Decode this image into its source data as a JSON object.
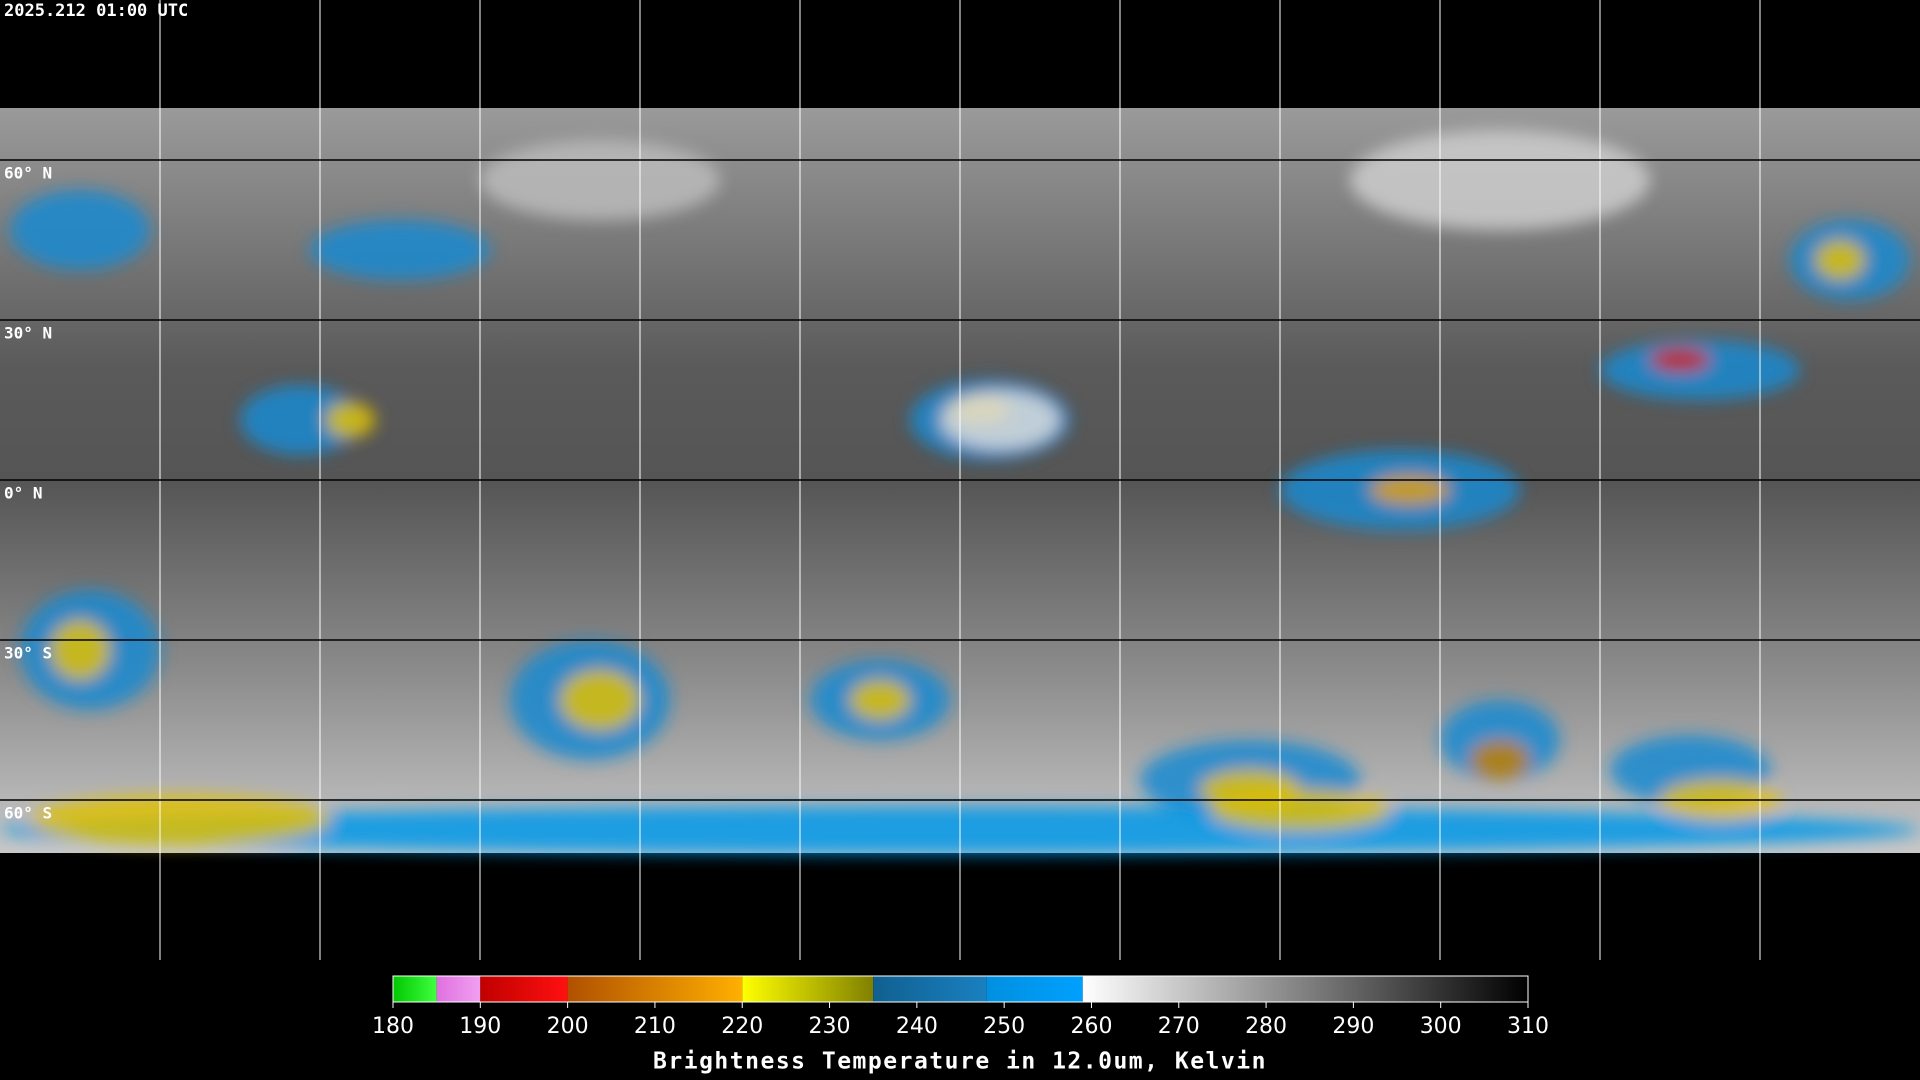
{
  "timestamp": "2025.212 01:00 UTC",
  "latitudes": [
    {
      "value": 60,
      "label": "60° N"
    },
    {
      "value": 30,
      "label": "30° N"
    },
    {
      "value": 0,
      "label": "0° N"
    },
    {
      "value": -30,
      "label": "30° S"
    },
    {
      "value": -60,
      "label": "60° S"
    }
  ],
  "colorbar": {
    "title": "Brightness Temperature in 12.0um, Kelvin",
    "range": [
      180,
      310
    ],
    "ticks": [
      180,
      190,
      200,
      210,
      220,
      230,
      240,
      250,
      260,
      270,
      280,
      290,
      300,
      310
    ],
    "segments": [
      {
        "from": 180,
        "to": 185,
        "colors": [
          "#00c800",
          "#40ff40"
        ]
      },
      {
        "from": 185,
        "to": 190,
        "colors": [
          "#e070e0",
          "#f0a0f0"
        ]
      },
      {
        "from": 190,
        "to": 200,
        "colors": [
          "#c00000",
          "#ff1010"
        ]
      },
      {
        "from": 200,
        "to": 220,
        "colors": [
          "#b05000",
          "#ffb000"
        ]
      },
      {
        "from": 220,
        "to": 235,
        "colors": [
          "#ffff00",
          "#808000"
        ]
      },
      {
        "from": 235,
        "to": 248,
        "colors": [
          "#106090",
          "#1a80c0"
        ]
      },
      {
        "from": 248,
        "to": 259,
        "colors": [
          "#0090e0",
          "#00a0ff"
        ]
      },
      {
        "from": 259,
        "to": 310,
        "colors": [
          "#ffffff",
          "#000000"
        ]
      }
    ]
  }
}
